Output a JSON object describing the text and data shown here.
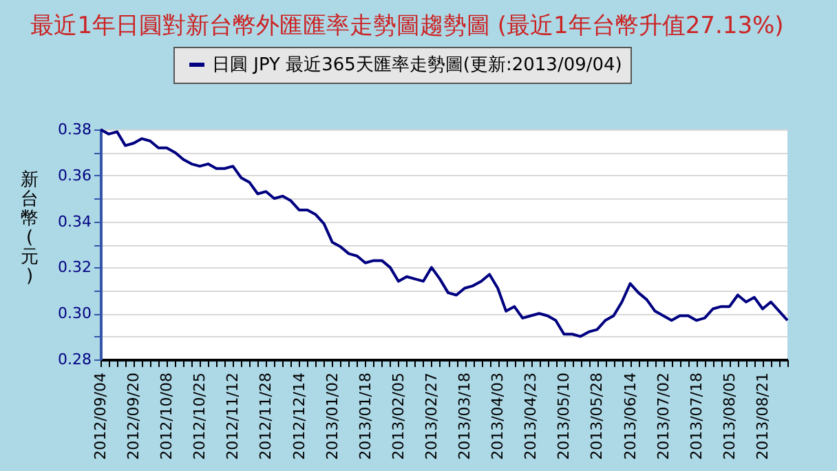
{
  "chart_data": {
    "type": "line",
    "title": "最近1年日圓對新台幣外匯匯率走勢圖趨勢圖 (最近1年台幣升值27.13%)",
    "ylabel": "新台幣(元)",
    "categories": [
      "2012/09/04",
      null,
      null,
      null,
      "2012/09/20",
      null,
      null,
      null,
      "2012/10/08",
      null,
      null,
      null,
      "2012/10/25",
      null,
      null,
      null,
      "2012/11/12",
      null,
      null,
      null,
      "2012/11/28",
      null,
      null,
      null,
      "2012/12/14",
      null,
      null,
      null,
      "2013/01/02",
      null,
      null,
      null,
      "2013/01/18",
      null,
      null,
      null,
      "2013/02/05",
      null,
      null,
      null,
      "2013/02/27",
      null,
      null,
      null,
      "2013/03/18",
      null,
      null,
      null,
      "2013/04/03",
      null,
      null,
      null,
      "2013/04/23",
      null,
      null,
      null,
      "2013/05/10",
      null,
      null,
      null,
      "2013/05/28",
      null,
      null,
      null,
      "2013/06/14",
      null,
      null,
      null,
      "2013/07/02",
      null,
      null,
      null,
      "2013/07/18",
      null,
      null,
      null,
      "2013/08/05",
      null,
      null,
      null,
      "2013/08/21",
      null,
      null,
      null
    ],
    "series": [
      {
        "name": "日圓 JPY 最近365天匯率走勢圖(更新:2013/09/04)",
        "color": "#000080",
        "values": [
          0.38,
          0.378,
          0.379,
          0.373,
          0.374,
          0.376,
          0.375,
          0.372,
          0.372,
          0.37,
          0.367,
          0.365,
          0.364,
          0.365,
          0.363,
          0.363,
          0.364,
          0.359,
          0.357,
          0.352,
          0.353,
          0.35,
          0.351,
          0.349,
          0.345,
          0.345,
          0.343,
          0.339,
          0.331,
          0.329,
          0.326,
          0.325,
          0.322,
          0.323,
          0.323,
          0.32,
          0.314,
          0.316,
          0.315,
          0.314,
          0.32,
          0.315,
          0.309,
          0.308,
          0.311,
          0.312,
          0.314,
          0.317,
          0.311,
          0.301,
          0.303,
          0.298,
          0.299,
          0.3,
          0.299,
          0.297,
          0.291,
          0.291,
          0.29,
          0.292,
          0.293,
          0.297,
          0.299,
          0.305,
          0.313,
          0.309,
          0.306,
          0.301,
          0.299,
          0.297,
          0.299,
          0.299,
          0.297,
          0.298,
          0.302,
          0.303,
          0.303,
          0.308,
          0.305,
          0.307,
          0.302,
          0.305,
          0.301,
          0.297
        ]
      }
    ],
    "ylim": [
      0.28,
      0.38
    ],
    "yticks": [
      0.28,
      {
        "value": 0.29,
        "label": null
      },
      {
        "value": 0.3,
        "label": "0.30"
      },
      {
        "value": 0.31,
        "label": null
      },
      0.32,
      {
        "value": 0.33,
        "label": null
      },
      0.34,
      {
        "value": 0.35,
        "label": null
      },
      0.36,
      {
        "value": 0.37,
        "label": null
      },
      0.38
    ],
    "grid": "y",
    "legend": "top",
    "marker": "none",
    "line_style": "solid"
  }
}
